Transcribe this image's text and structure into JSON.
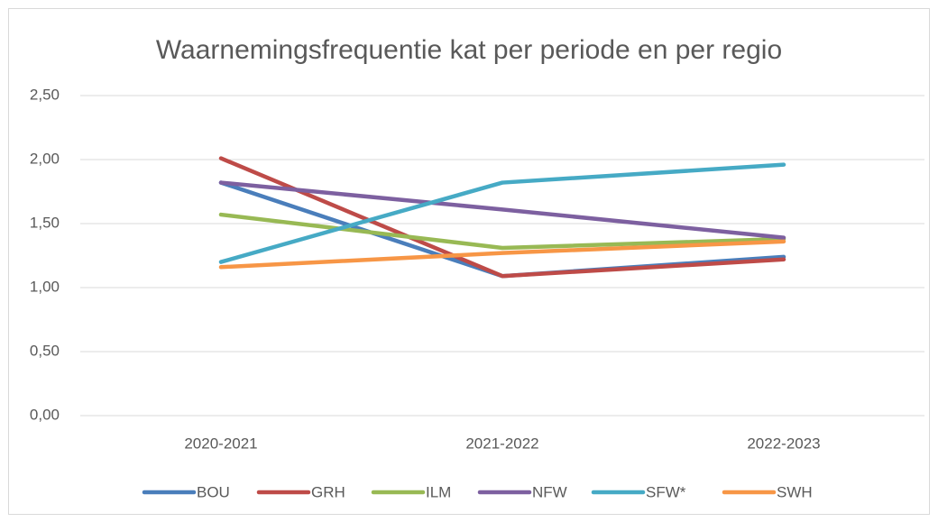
{
  "chart_data": {
    "type": "line",
    "title": "Waarnemingsfrequentie kat per periode en per regio",
    "categories": [
      "2020-2021",
      "2021-2022",
      "2022-2023"
    ],
    "series": [
      {
        "name": "BOU",
        "color": "#4a7ebb",
        "values": [
          1.82,
          1.09,
          1.24
        ]
      },
      {
        "name": "GRH",
        "color": "#be4b48",
        "values": [
          2.01,
          1.09,
          1.22
        ]
      },
      {
        "name": "ILM",
        "color": "#98b954",
        "values": [
          1.57,
          1.31,
          1.38
        ]
      },
      {
        "name": "NFW",
        "color": "#7d60a0",
        "values": [
          1.82,
          1.61,
          1.39
        ]
      },
      {
        "name": "SFW*",
        "color": "#46aac5",
        "values": [
          1.2,
          1.82,
          1.96
        ]
      },
      {
        "name": "SWH",
        "color": "#f79646",
        "values": [
          1.16,
          1.27,
          1.36
        ]
      }
    ],
    "ylim": [
      0,
      2.5
    ],
    "yticks": [
      {
        "value": 0,
        "label": "0,00"
      },
      {
        "value": 0.5,
        "label": "0,50"
      },
      {
        "value": 1,
        "label": "1,00"
      },
      {
        "value": 1.5,
        "label": "1,50"
      },
      {
        "value": 2,
        "label": "2,00"
      },
      {
        "value": 2.5,
        "label": "2,50"
      }
    ],
    "grid": true,
    "legend": "bottom"
  }
}
